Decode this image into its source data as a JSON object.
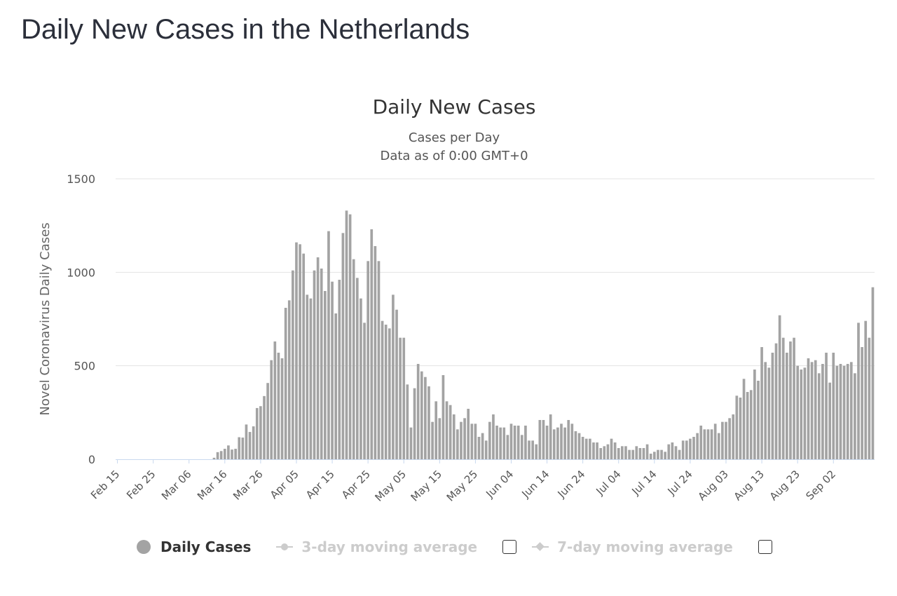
{
  "page": {
    "title": "Daily New Cases in the Netherlands"
  },
  "chart_data": {
    "type": "bar",
    "title": "Daily New Cases",
    "subtitle_lines": [
      "Cases per Day",
      "Data as of 0:00 GMT+0"
    ],
    "ylabel": "Novel Coronavirus Daily Cases",
    "xlabel": "",
    "ylim": [
      0,
      1500
    ],
    "yticks": [
      0,
      500,
      1000,
      1500
    ],
    "grid": true,
    "bar_color": "#a3a3a3",
    "x_tick_labels": [
      "Feb 15",
      "Feb 25",
      "Mar 06",
      "Mar 16",
      "Mar 26",
      "Apr 05",
      "Apr 15",
      "Apr 25",
      "May 05",
      "May 15",
      "May 25",
      "Jun 04",
      "Jun 14",
      "Jun 24",
      "Jul 04",
      "Jul 14",
      "Jul 24",
      "Aug 03",
      "Aug 13",
      "Aug 23",
      "Sep 02"
    ],
    "first_date": "Feb 15",
    "series": [
      {
        "name": "Daily Cases",
        "values": [
          0,
          0,
          0,
          0,
          0,
          0,
          0,
          0,
          0,
          0,
          0,
          0,
          0,
          0,
          0,
          0,
          0,
          0,
          0,
          0,
          0,
          0,
          0,
          0,
          0,
          0,
          0,
          8,
          38,
          44,
          56,
          74,
          52,
          56,
          118,
          116,
          186,
          146,
          176,
          274,
          284,
          338,
          408,
          530,
          630,
          570,
          540,
          810,
          850,
          1010,
          1160,
          1150,
          1100,
          880,
          860,
          1010,
          1080,
          1020,
          900,
          1220,
          950,
          780,
          960,
          1210,
          1330,
          1310,
          1070,
          970,
          860,
          730,
          1060,
          1230,
          1140,
          1060,
          740,
          720,
          700,
          880,
          800,
          650,
          650,
          400,
          170,
          380,
          510,
          470,
          440,
          390,
          200,
          310,
          220,
          450,
          310,
          290,
          240,
          160,
          200,
          220,
          270,
          190,
          190,
          120,
          140,
          100,
          200,
          240,
          180,
          170,
          170,
          130,
          190,
          180,
          180,
          130,
          180,
          100,
          100,
          80,
          210,
          210,
          180,
          240,
          160,
          170,
          190,
          170,
          210,
          190,
          150,
          140,
          120,
          110,
          110,
          90,
          90,
          60,
          70,
          80,
          110,
          90,
          60,
          70,
          70,
          50,
          50,
          70,
          60,
          60,
          80,
          30,
          40,
          50,
          50,
          40,
          80,
          90,
          70,
          50,
          100,
          100,
          110,
          120,
          140,
          180,
          160,
          160,
          160,
          190,
          140,
          200,
          200,
          220,
          240,
          340,
          330,
          430,
          360,
          370,
          480,
          420,
          600,
          520,
          490,
          570,
          620,
          770,
          650,
          570,
          630,
          650,
          500,
          480,
          490,
          540,
          520,
          530,
          460,
          510,
          570,
          410,
          570,
          500,
          510,
          500,
          510,
          520,
          460,
          730,
          600,
          740,
          650,
          920
        ]
      },
      {
        "name": "3-day moving average",
        "visible": false
      },
      {
        "name": "7-day moving average",
        "visible": false
      }
    ]
  },
  "legend": {
    "items": [
      {
        "label": "Daily Cases",
        "active": true
      },
      {
        "label": "3-day moving average",
        "active": false
      },
      {
        "label": "7-day moving average",
        "active": false
      }
    ]
  }
}
